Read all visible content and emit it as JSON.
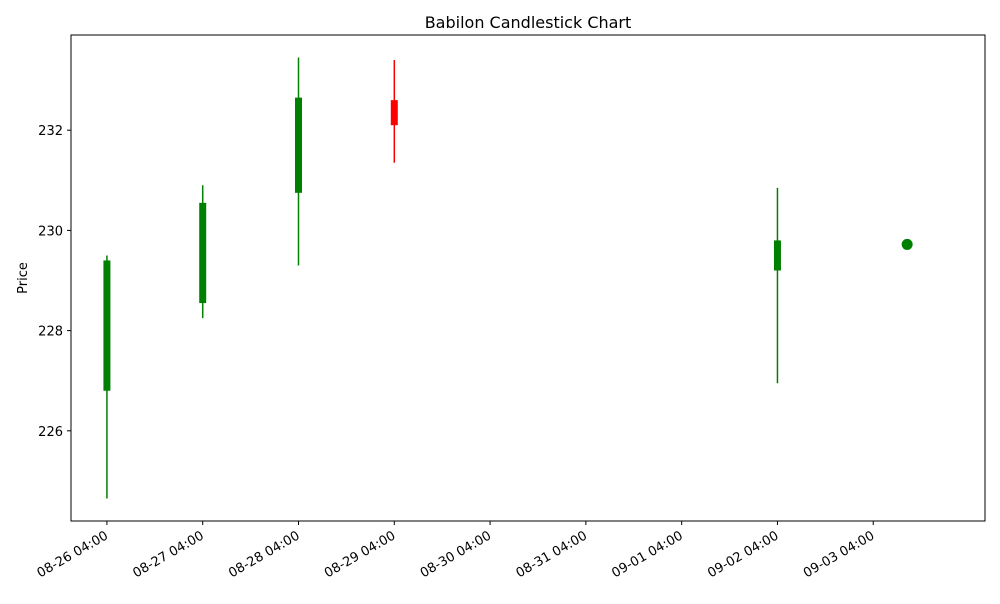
{
  "chart_data": {
    "type": "candlestick",
    "title": "Babilon Candlestick Chart",
    "xlabel": "",
    "ylabel": "Price",
    "ylim": [
      224.2,
      233.9
    ],
    "xlim": [
      "2024-08-25T19:00",
      "2024-09-04T08:00"
    ],
    "y_ticks": [
      226,
      228,
      230,
      232
    ],
    "x_ticks": [
      {
        "t": "2024-08-26T04:00",
        "label": "08-26 04:00"
      },
      {
        "t": "2024-08-27T04:00",
        "label": "08-27 04:00"
      },
      {
        "t": "2024-08-28T04:00",
        "label": "08-28 04:00"
      },
      {
        "t": "2024-08-29T04:00",
        "label": "08-29 04:00"
      },
      {
        "t": "2024-08-30T04:00",
        "label": "08-30 04:00"
      },
      {
        "t": "2024-08-31T04:00",
        "label": "08-31 04:00"
      },
      {
        "t": "2024-09-01T04:00",
        "label": "09-01 04:00"
      },
      {
        "t": "2024-09-02T04:00",
        "label": "09-02 04:00"
      },
      {
        "t": "2024-09-03T04:00",
        "label": "09-03 04:00"
      }
    ],
    "candles": [
      {
        "t": "2024-08-26T04:00",
        "open": 226.8,
        "close": 229.4,
        "low": 224.65,
        "high": 229.5
      },
      {
        "t": "2024-08-27T04:00",
        "open": 228.55,
        "close": 230.55,
        "low": 228.25,
        "high": 230.9
      },
      {
        "t": "2024-08-28T04:00",
        "open": 230.75,
        "close": 232.65,
        "low": 229.3,
        "high": 233.45
      },
      {
        "t": "2024-08-29T04:00",
        "open": 232.6,
        "close": 232.1,
        "low": 231.35,
        "high": 233.4
      },
      {
        "t": "2024-09-02T04:00",
        "open": 229.2,
        "close": 229.8,
        "low": 226.95,
        "high": 230.85
      }
    ],
    "points": [
      {
        "t": "2024-09-03T12:30",
        "value": 229.72,
        "color": "#008000"
      }
    ],
    "colors": {
      "up": "#008000",
      "down": "#ff0000"
    },
    "grid": false,
    "legend": "none"
  }
}
